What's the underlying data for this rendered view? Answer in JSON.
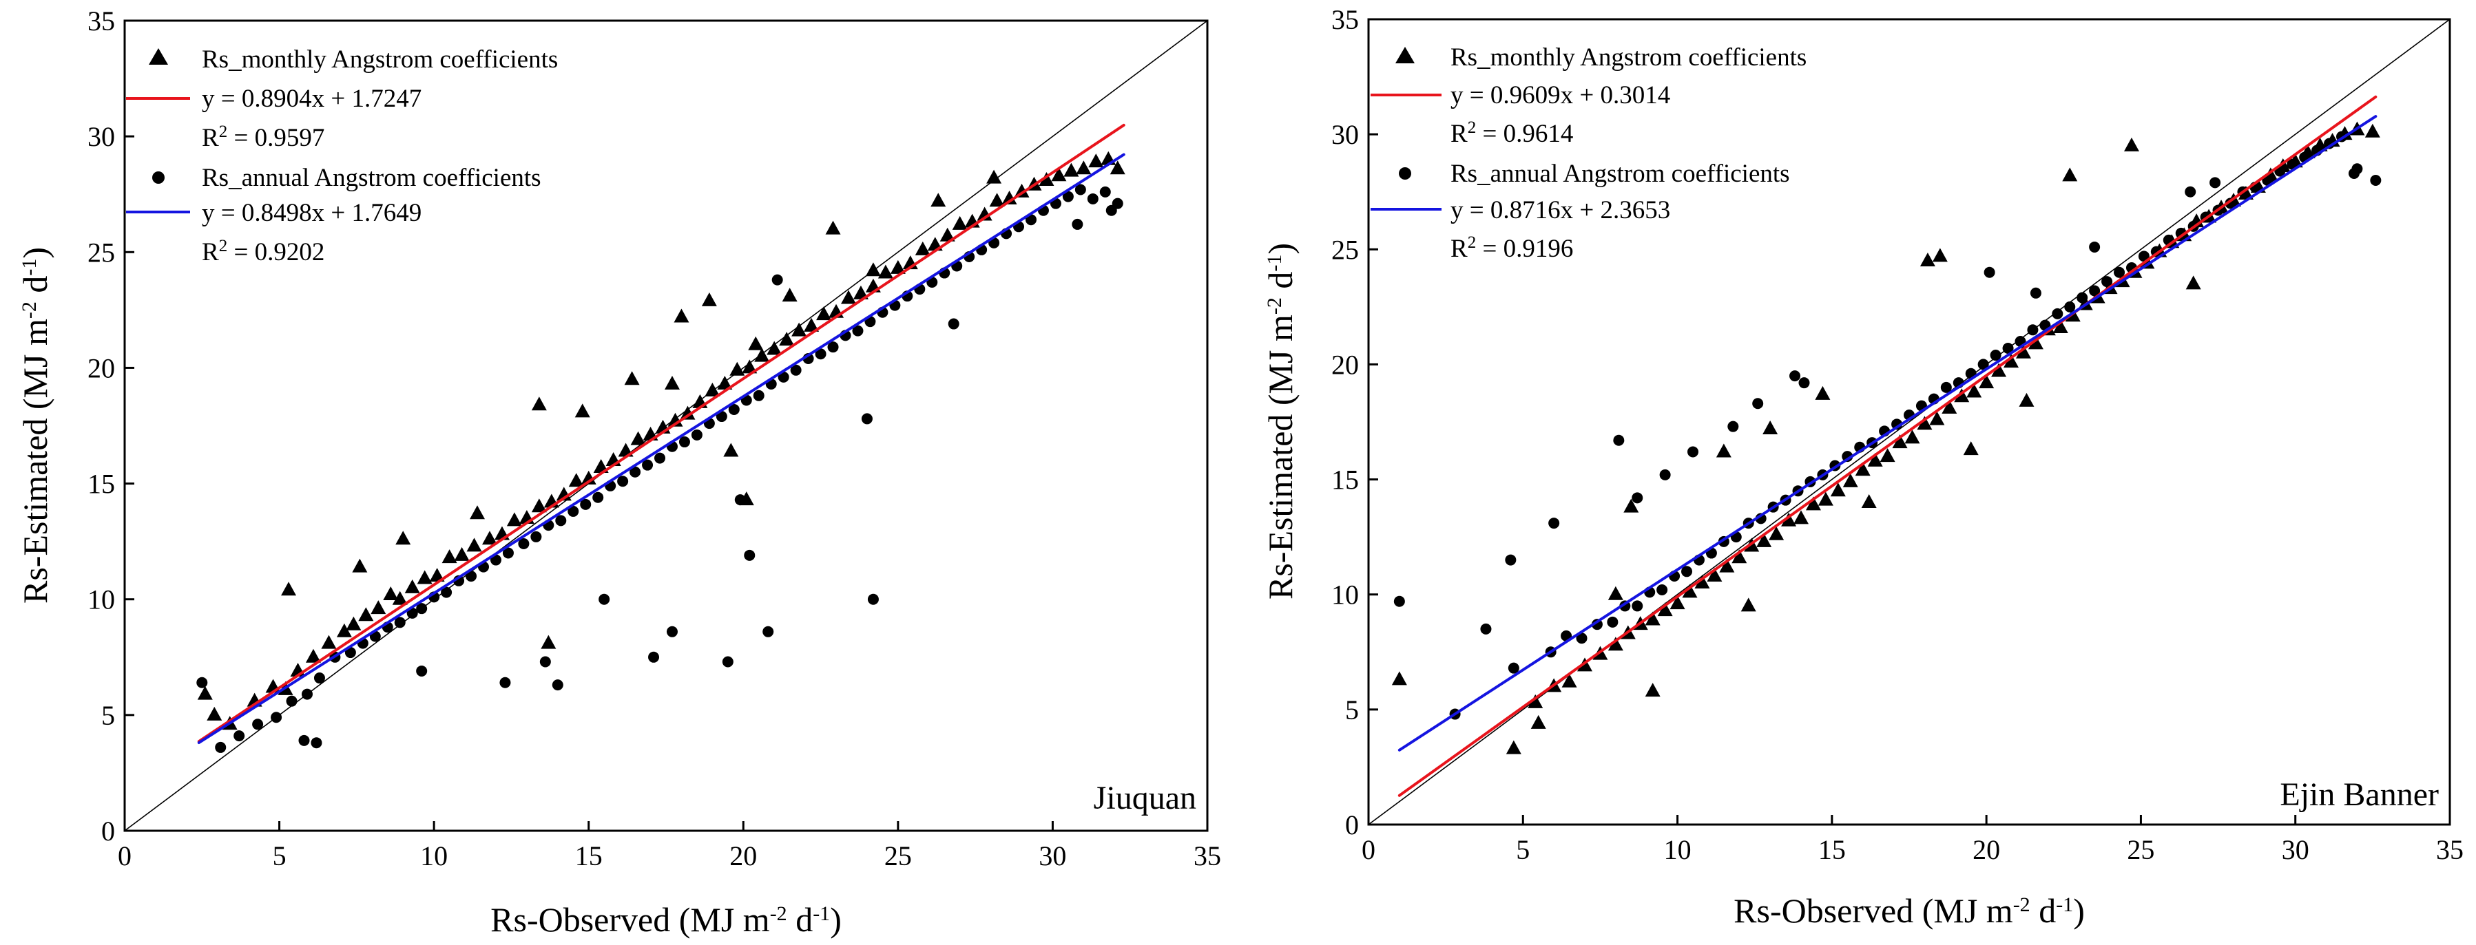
{
  "chart_data": [
    {
      "type": "scatter",
      "site": "Jiuquan",
      "xlabel": "Rs-Observed (MJ m-2 d-1)",
      "ylabel": "Rs-Estimated (MJ m-2 d-1)",
      "xlim": [
        0,
        35
      ],
      "ylim": [
        0,
        35
      ],
      "xticks": [
        0,
        5,
        10,
        15,
        20,
        25,
        30,
        35
      ],
      "yticks": [
        0,
        5,
        10,
        15,
        20,
        25,
        30,
        35
      ],
      "grid": false,
      "legend_position": "top-left",
      "identity_line": true,
      "series": [
        {
          "name": "Rs_monthly Angstrom coefficients",
          "marker": "triangle",
          "color": "#000000",
          "fit": {
            "slope": 0.8904,
            "intercept": 1.7247,
            "equation": "y = 0.8904x + 1.7247",
            "r2": "0.9597",
            "color": "#e8141c",
            "x_range": [
              2.4,
              32.3
            ]
          },
          "x": [
            2.6,
            2.9,
            3.4,
            4.2,
            4.8,
            5.2,
            5.6,
            6.1,
            6.6,
            7.1,
            7.4,
            7.8,
            8.2,
            8.6,
            8.9,
            9.3,
            9.7,
            10.1,
            10.5,
            10.9,
            11.3,
            11.8,
            12.2,
            12.6,
            13.0,
            13.4,
            13.8,
            14.2,
            14.6,
            15.0,
            15.4,
            15.8,
            16.2,
            16.6,
            17.0,
            17.4,
            17.8,
            18.2,
            18.6,
            19.0,
            19.4,
            19.8,
            20.2,
            20.6,
            21.0,
            21.4,
            21.8,
            22.2,
            22.6,
            23.0,
            23.4,
            23.8,
            24.2,
            24.6,
            25.0,
            25.4,
            25.8,
            26.2,
            26.6,
            27.0,
            27.4,
            27.8,
            28.2,
            28.6,
            29.0,
            29.4,
            29.8,
            30.2,
            30.6,
            31.0,
            31.4,
            31.8,
            32.1,
            5.3,
            7.6,
            9.0,
            11.4,
            13.4,
            14.8,
            18.0,
            18.9,
            20.4,
            22.9,
            24.2,
            13.7,
            19.6,
            20.1,
            16.4,
            17.7,
            21.5,
            26.3,
            28.1
          ],
          "y": [
            5.9,
            5.0,
            4.6,
            5.6,
            6.2,
            6.1,
            6.9,
            7.5,
            8.1,
            8.6,
            8.9,
            9.3,
            9.6,
            10.2,
            10.0,
            10.5,
            10.9,
            11.0,
            11.8,
            11.9,
            12.3,
            12.6,
            12.8,
            13.4,
            13.5,
            14.0,
            14.2,
            14.5,
            15.1,
            15.2,
            15.7,
            16.0,
            16.4,
            16.9,
            17.1,
            17.4,
            17.7,
            18.0,
            18.5,
            19.0,
            19.3,
            19.9,
            20.0,
            20.5,
            20.8,
            21.2,
            21.6,
            21.8,
            22.3,
            22.4,
            23.0,
            23.2,
            23.5,
            24.1,
            24.3,
            24.5,
            25.1,
            25.3,
            25.7,
            26.2,
            26.3,
            26.6,
            27.2,
            27.3,
            27.6,
            27.9,
            28.1,
            28.3,
            28.5,
            28.6,
            28.9,
            29.0,
            28.6,
            10.4,
            11.4,
            12.6,
            13.7,
            18.4,
            18.1,
            22.2,
            22.9,
            21.0,
            26.0,
            24.2,
            8.1,
            16.4,
            14.3,
            19.5,
            19.3,
            23.1,
            27.2,
            28.2
          ]
        },
        {
          "name": "Rs_annual Angstrom coefficients",
          "marker": "circle",
          "color": "#000000",
          "fit": {
            "slope": 0.8498,
            "intercept": 1.7649,
            "equation": "y = 0.8498x + 1.7649",
            "r2": "0.9202",
            "color": "#1414e0",
            "x_range": [
              2.4,
              32.3
            ]
          },
          "x": [
            2.5,
            3.1,
            3.7,
            4.3,
            4.9,
            5.4,
            5.9,
            6.3,
            6.8,
            7.3,
            7.7,
            8.1,
            8.5,
            8.9,
            9.3,
            9.6,
            10.0,
            10.4,
            10.8,
            11.2,
            11.6,
            12.0,
            12.4,
            12.9,
            13.3,
            13.7,
            14.1,
            14.5,
            14.9,
            15.3,
            15.7,
            16.1,
            16.5,
            16.9,
            17.3,
            17.7,
            18.1,
            18.5,
            18.9,
            19.3,
            19.7,
            20.1,
            20.5,
            20.9,
            21.3,
            21.7,
            22.1,
            22.5,
            22.9,
            23.3,
            23.7,
            24.1,
            24.5,
            24.9,
            25.3,
            25.7,
            26.1,
            26.5,
            26.9,
            27.3,
            27.7,
            28.1,
            28.5,
            28.9,
            29.3,
            29.7,
            30.1,
            30.5,
            30.9,
            31.3,
            31.7,
            32.1,
            5.8,
            6.2,
            9.6,
            12.3,
            13.6,
            14.0,
            15.5,
            17.1,
            17.7,
            19.5,
            20.2,
            20.8,
            24.0,
            24.2,
            19.9,
            21.1,
            26.8,
            30.8,
            31.9
          ],
          "y": [
            6.4,
            3.6,
            4.1,
            4.6,
            4.9,
            5.6,
            5.9,
            6.6,
            7.5,
            7.7,
            8.1,
            8.4,
            8.8,
            9.0,
            9.4,
            9.6,
            10.1,
            10.3,
            10.8,
            11.0,
            11.4,
            11.7,
            12.0,
            12.4,
            12.7,
            13.2,
            13.4,
            13.8,
            14.1,
            14.4,
            14.9,
            15.1,
            15.5,
            15.8,
            16.1,
            16.6,
            16.8,
            17.1,
            17.6,
            17.9,
            18.2,
            18.6,
            18.8,
            19.3,
            19.6,
            19.9,
            20.4,
            20.6,
            20.9,
            21.4,
            21.6,
            22.0,
            22.4,
            22.7,
            23.1,
            23.4,
            23.7,
            24.1,
            24.4,
            24.8,
            25.1,
            25.4,
            25.8,
            26.1,
            26.4,
            26.8,
            27.1,
            27.4,
            27.7,
            27.3,
            27.6,
            27.1,
            3.9,
            3.8,
            6.9,
            6.4,
            7.3,
            6.3,
            10.0,
            7.5,
            8.6,
            7.3,
            11.9,
            8.6,
            17.8,
            10.0,
            14.3,
            23.8,
            21.9,
            26.2,
            26.8
          ]
        }
      ]
    },
    {
      "type": "scatter",
      "site": "Ejin Banner",
      "xlabel": "Rs-Observed (MJ m-2 d-1)",
      "ylabel": "Rs-Estimated (MJ m-2 d-1)",
      "xlim": [
        0,
        35
      ],
      "ylim": [
        0,
        35
      ],
      "xticks": [
        0,
        5,
        10,
        15,
        20,
        25,
        30,
        35
      ],
      "yticks": [
        0,
        5,
        10,
        15,
        20,
        25,
        30,
        35
      ],
      "grid": false,
      "legend_position": "top-left",
      "identity_line": true,
      "series": [
        {
          "name": "Rs_monthly Angstrom coefficients",
          "marker": "triangle",
          "color": "#000000",
          "fit": {
            "slope": 0.9609,
            "intercept": 0.3014,
            "equation": "y = 0.9609x + 0.3014",
            "r2": "0.9614",
            "color": "#e8141c",
            "x_range": [
              1.0,
              32.6
            ]
          },
          "x": [
            1.0,
            4.7,
            5.4,
            6.0,
            6.5,
            7.0,
            7.5,
            8.0,
            8.4,
            8.8,
            9.2,
            9.6,
            10.0,
            10.4,
            10.8,
            11.2,
            11.6,
            12.0,
            12.4,
            12.8,
            13.2,
            13.6,
            14.0,
            14.4,
            14.8,
            15.2,
            15.6,
            16.0,
            16.4,
            16.8,
            17.2,
            17.6,
            18.0,
            18.4,
            18.8,
            19.2,
            19.6,
            20.0,
            20.4,
            20.8,
            21.2,
            21.6,
            22.0,
            22.4,
            22.8,
            23.2,
            23.6,
            24.0,
            24.4,
            24.8,
            25.2,
            25.6,
            26.0,
            26.4,
            26.8,
            27.2,
            27.6,
            28.0,
            28.4,
            28.8,
            29.2,
            29.6,
            30.0,
            30.4,
            30.8,
            31.2,
            31.6,
            32.0,
            32.5,
            5.5,
            8.0,
            8.5,
            11.5,
            13.0,
            14.7,
            18.1,
            18.5,
            22.7,
            24.7,
            9.2,
            12.3,
            16.2,
            19.5,
            21.3,
            26.7
          ],
          "y": [
            6.3,
            3.3,
            5.3,
            6.0,
            6.2,
            6.9,
            7.4,
            7.8,
            8.3,
            8.7,
            8.9,
            9.3,
            9.6,
            10.1,
            10.5,
            10.8,
            11.2,
            11.6,
            12.1,
            12.3,
            12.6,
            13.2,
            13.3,
            13.9,
            14.1,
            14.5,
            14.9,
            15.4,
            15.8,
            16.0,
            16.6,
            16.8,
            17.4,
            17.6,
            18.1,
            18.6,
            18.8,
            19.2,
            19.7,
            20.1,
            20.5,
            20.9,
            21.5,
            21.6,
            22.1,
            22.6,
            22.9,
            23.3,
            23.6,
            24.0,
            24.4,
            24.9,
            25.3,
            25.6,
            26.2,
            26.4,
            26.8,
            27.1,
            27.4,
            27.7,
            28.2,
            28.6,
            28.8,
            29.2,
            29.5,
            29.7,
            30.0,
            30.2,
            30.1,
            4.4,
            10.0,
            13.8,
            16.2,
            17.2,
            18.7,
            24.5,
            24.7,
            28.2,
            29.5,
            5.8,
            9.5,
            14.0,
            16.3,
            18.4,
            23.5
          ]
        },
        {
          "name": "Rs_annual Angstrom coefficients",
          "marker": "circle",
          "color": "#000000",
          "fit": {
            "slope": 0.8716,
            "intercept": 2.3653,
            "equation": "y = 0.8716x + 2.3653",
            "r2": "0.9196",
            "color": "#1414e0",
            "x_range": [
              1.0,
              32.6
            ]
          },
          "x": [
            1.0,
            2.8,
            3.8,
            4.7,
            5.9,
            6.4,
            6.9,
            7.4,
            7.9,
            8.3,
            8.7,
            9.1,
            9.5,
            9.9,
            10.3,
            10.7,
            11.1,
            11.5,
            11.9,
            12.3,
            12.7,
            13.1,
            13.5,
            13.9,
            14.3,
            14.7,
            15.1,
            15.5,
            15.9,
            16.3,
            16.7,
            17.1,
            17.5,
            17.9,
            18.3,
            18.7,
            19.1,
            19.5,
            19.9,
            20.3,
            20.7,
            21.1,
            21.5,
            21.9,
            22.3,
            22.7,
            23.1,
            23.5,
            23.9,
            24.3,
            24.7,
            25.1,
            25.5,
            25.9,
            26.3,
            26.7,
            27.1,
            27.5,
            27.9,
            28.3,
            28.7,
            29.1,
            29.5,
            29.9,
            30.3,
            30.7,
            31.1,
            31.5,
            32.0,
            32.6,
            4.6,
            6.0,
            8.1,
            8.7,
            9.6,
            10.5,
            11.8,
            12.6,
            13.8,
            14.1,
            20.1,
            21.6,
            23.5,
            26.6,
            27.4,
            31.9
          ],
          "y": [
            9.7,
            4.8,
            8.5,
            6.8,
            7.5,
            8.2,
            8.1,
            8.7,
            8.8,
            9.5,
            9.5,
            10.1,
            10.2,
            10.8,
            11.0,
            11.5,
            11.8,
            12.3,
            12.5,
            13.1,
            13.3,
            13.8,
            14.1,
            14.5,
            14.9,
            15.2,
            15.6,
            16.0,
            16.4,
            16.6,
            17.1,
            17.4,
            17.8,
            18.2,
            18.5,
            19.0,
            19.2,
            19.6,
            20.0,
            20.4,
            20.7,
            21.0,
            21.5,
            21.7,
            22.2,
            22.5,
            22.9,
            23.2,
            23.6,
            24.0,
            24.2,
            24.7,
            24.9,
            25.4,
            25.7,
            26.0,
            26.4,
            26.7,
            27.0,
            27.5,
            27.7,
            28.0,
            28.4,
            28.7,
            29.0,
            29.3,
            29.6,
            29.9,
            28.5,
            28.0,
            11.5,
            13.1,
            16.7,
            14.2,
            15.2,
            16.2,
            17.3,
            18.3,
            19.5,
            19.2,
            24.0,
            23.1,
            25.1,
            27.5,
            27.9,
            28.3
          ]
        }
      ]
    }
  ]
}
